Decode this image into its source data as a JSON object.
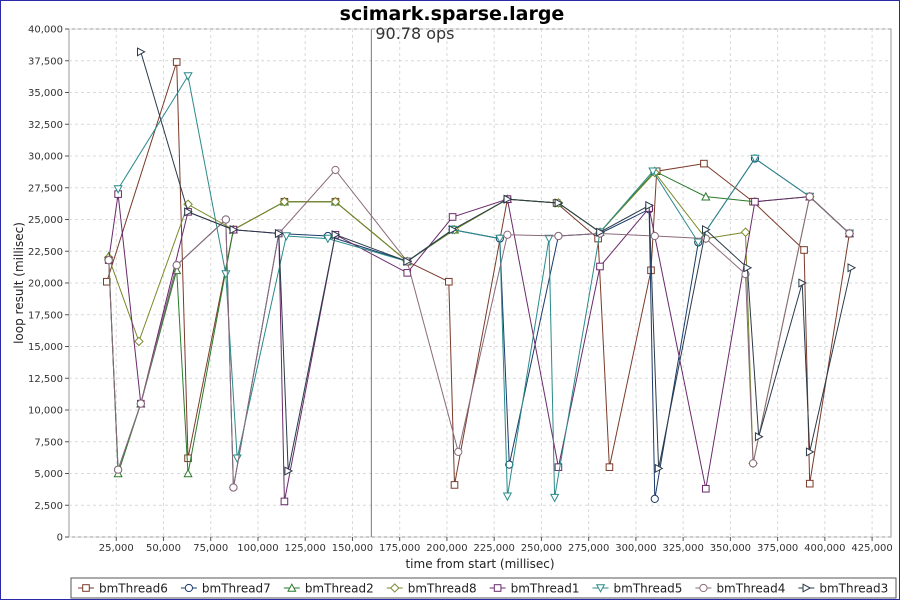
{
  "chart_data": {
    "type": "line",
    "title": "scimark.sparse.large",
    "annotation": "90.78 ops",
    "annotation_x": 160000,
    "xlabel": "time from start (millisec)",
    "ylabel": "loop result (millisec)",
    "xlim": [
      0,
      435000
    ],
    "ylim": [
      0,
      40000
    ],
    "xticks": [
      25000,
      50000,
      75000,
      100000,
      125000,
      150000,
      175000,
      200000,
      225000,
      250000,
      275000,
      300000,
      325000,
      350000,
      375000,
      400000,
      425000
    ],
    "xtick_labels": [
      "25,000",
      "50,000",
      "75,000",
      "100,000",
      "125,000",
      "150,000",
      "175,000",
      "200,000",
      "225,000",
      "250,000",
      "275,000",
      "300,000",
      "325,000",
      "350,000",
      "375,000",
      "400,000",
      "425,000"
    ],
    "yticks": [
      0,
      2500,
      5000,
      7500,
      10000,
      12500,
      15000,
      17500,
      20000,
      22500,
      25000,
      27500,
      30000,
      32500,
      35000,
      37500,
      40000
    ],
    "ytick_labels": [
      "0",
      "2,500",
      "5,000",
      "7,500",
      "10,000",
      "12,500",
      "15,000",
      "17,500",
      "20,000",
      "22,500",
      "25,000",
      "27,500",
      "30,000",
      "32,500",
      "35,000",
      "37,500",
      "40,000"
    ],
    "grid": true,
    "legend_position": "bottom",
    "series": [
      {
        "name": "bmThread6",
        "color": "#7a3a2a",
        "marker": "square",
        "points": [
          [
            20000,
            20100
          ],
          [
            57000,
            37400
          ],
          [
            63000,
            6200
          ],
          [
            87000,
            24200
          ],
          [
            114000,
            26400
          ],
          [
            141000,
            26400
          ],
          [
            179000,
            21700
          ],
          [
            201000,
            20100
          ],
          [
            204000,
            4100
          ],
          [
            232000,
            26600
          ],
          [
            258000,
            26300
          ],
          [
            280000,
            23500
          ],
          [
            286000,
            5500
          ],
          [
            308000,
            21000
          ],
          [
            311000,
            28800
          ],
          [
            336000,
            29400
          ],
          [
            362000,
            26400
          ],
          [
            389000,
            22600
          ],
          [
            392000,
            4200
          ],
          [
            413000,
            23900
          ]
        ]
      },
      {
        "name": "bmThread7",
        "color": "#1a3a6a",
        "marker": "circle",
        "points": [
          [
            21000,
            21800
          ],
          [
            26000,
            5300
          ],
          [
            38000,
            10500
          ],
          [
            57000,
            21400
          ],
          [
            83000,
            25000
          ],
          [
            87000,
            3900
          ],
          [
            111000,
            23900
          ],
          [
            137000,
            23700
          ],
          [
            179000,
            21700
          ],
          [
            203000,
            24200
          ],
          [
            228000,
            23500
          ],
          [
            233000,
            5700
          ],
          [
            259000,
            23700
          ],
          [
            281000,
            23900
          ],
          [
            307000,
            25800
          ],
          [
            310000,
            3000
          ],
          [
            333000,
            23200
          ],
          [
            363000,
            29800
          ],
          [
            392000,
            26800
          ],
          [
            413000,
            23900
          ]
        ]
      },
      {
        "name": "bmThread2",
        "color": "#2a7a2a",
        "marker": "triangle-up",
        "points": [
          [
            21000,
            22100
          ],
          [
            26000,
            5000
          ],
          [
            38000,
            10500
          ],
          [
            57000,
            21000
          ],
          [
            63000,
            5000
          ],
          [
            87000,
            24200
          ],
          [
            114000,
            26400
          ],
          [
            141000,
            26400
          ],
          [
            179000,
            21700
          ],
          [
            204000,
            24200
          ],
          [
            232000,
            26600
          ],
          [
            259000,
            26300
          ],
          [
            281000,
            24000
          ],
          [
            310000,
            28800
          ],
          [
            337000,
            26800
          ],
          [
            363000,
            26400
          ],
          [
            392000,
            26800
          ],
          [
            413000,
            23900
          ]
        ]
      },
      {
        "name": "bmThread8",
        "color": "#7a8a2a",
        "marker": "diamond",
        "points": [
          [
            21000,
            22000
          ],
          [
            37000,
            15400
          ],
          [
            63000,
            26200
          ],
          [
            87000,
            24200
          ],
          [
            114000,
            26400
          ],
          [
            141000,
            26400
          ],
          [
            179000,
            21700
          ],
          [
            204000,
            24200
          ],
          [
            232000,
            26600
          ],
          [
            259000,
            26300
          ],
          [
            281000,
            24000
          ],
          [
            310000,
            28700
          ],
          [
            337000,
            23500
          ],
          [
            358000,
            24000
          ],
          [
            362000,
            5800
          ],
          [
            392000,
            26800
          ],
          [
            413000,
            23900
          ]
        ]
      },
      {
        "name": "bmThread1",
        "color": "#6a2a6a",
        "marker": "square",
        "points": [
          [
            21000,
            21800
          ],
          [
            26000,
            27000
          ],
          [
            38000,
            10500
          ],
          [
            63000,
            25600
          ],
          [
            87000,
            24200
          ],
          [
            111000,
            23900
          ],
          [
            114000,
            2800
          ],
          [
            141000,
            23800
          ],
          [
            179000,
            20800
          ],
          [
            203000,
            25200
          ],
          [
            232000,
            26600
          ],
          [
            259000,
            5500
          ],
          [
            281000,
            21300
          ],
          [
            307000,
            25900
          ],
          [
            337000,
            3800
          ],
          [
            363000,
            26400
          ],
          [
            392000,
            26800
          ],
          [
            413000,
            23900
          ]
        ]
      },
      {
        "name": "bmThread5",
        "color": "#2a8a8a",
        "marker": "triangle-down",
        "points": [
          [
            26000,
            27400
          ],
          [
            63000,
            36300
          ],
          [
            83000,
            20700
          ],
          [
            89000,
            6200
          ],
          [
            115000,
            23700
          ],
          [
            137000,
            23500
          ],
          [
            179000,
            21700
          ],
          [
            203000,
            24200
          ],
          [
            228000,
            23500
          ],
          [
            232000,
            3200
          ],
          [
            254000,
            23500
          ],
          [
            257000,
            3100
          ],
          [
            281000,
            24000
          ],
          [
            309000,
            28800
          ],
          [
            333000,
            23200
          ],
          [
            363000,
            29800
          ],
          [
            392000,
            26800
          ],
          [
            413000,
            23900
          ]
        ]
      },
      {
        "name": "bmThread4",
        "color": "#8a6a7a",
        "marker": "circle",
        "points": [
          [
            21000,
            21800
          ],
          [
            26000,
            5300
          ],
          [
            38000,
            10500
          ],
          [
            57000,
            21400
          ],
          [
            83000,
            25000
          ],
          [
            87000,
            3900
          ],
          [
            111000,
            23900
          ],
          [
            141000,
            28900
          ],
          [
            179000,
            21700
          ],
          [
            206000,
            6700
          ],
          [
            232000,
            23800
          ],
          [
            259000,
            23700
          ],
          [
            281000,
            23900
          ],
          [
            310000,
            23700
          ],
          [
            337000,
            23500
          ],
          [
            358000,
            20700
          ],
          [
            362000,
            5800
          ],
          [
            392000,
            26800
          ],
          [
            413000,
            23900
          ]
        ]
      },
      {
        "name": "bmThread3",
        "color": "#2a3a4a",
        "marker": "triangle-right",
        "points": [
          [
            38000,
            38200
          ],
          [
            63000,
            25600
          ],
          [
            87000,
            24200
          ],
          [
            111000,
            23900
          ],
          [
            116000,
            5200
          ],
          [
            141000,
            23800
          ],
          [
            179000,
            21700
          ],
          [
            203000,
            24200
          ],
          [
            232000,
            26600
          ],
          [
            259000,
            26300
          ],
          [
            281000,
            24000
          ],
          [
            307000,
            26100
          ],
          [
            312000,
            5400
          ],
          [
            337000,
            24200
          ],
          [
            359000,
            21200
          ],
          [
            365000,
            7900
          ],
          [
            388000,
            20000
          ],
          [
            392000,
            6700
          ],
          [
            414000,
            21200
          ]
        ]
      }
    ]
  }
}
